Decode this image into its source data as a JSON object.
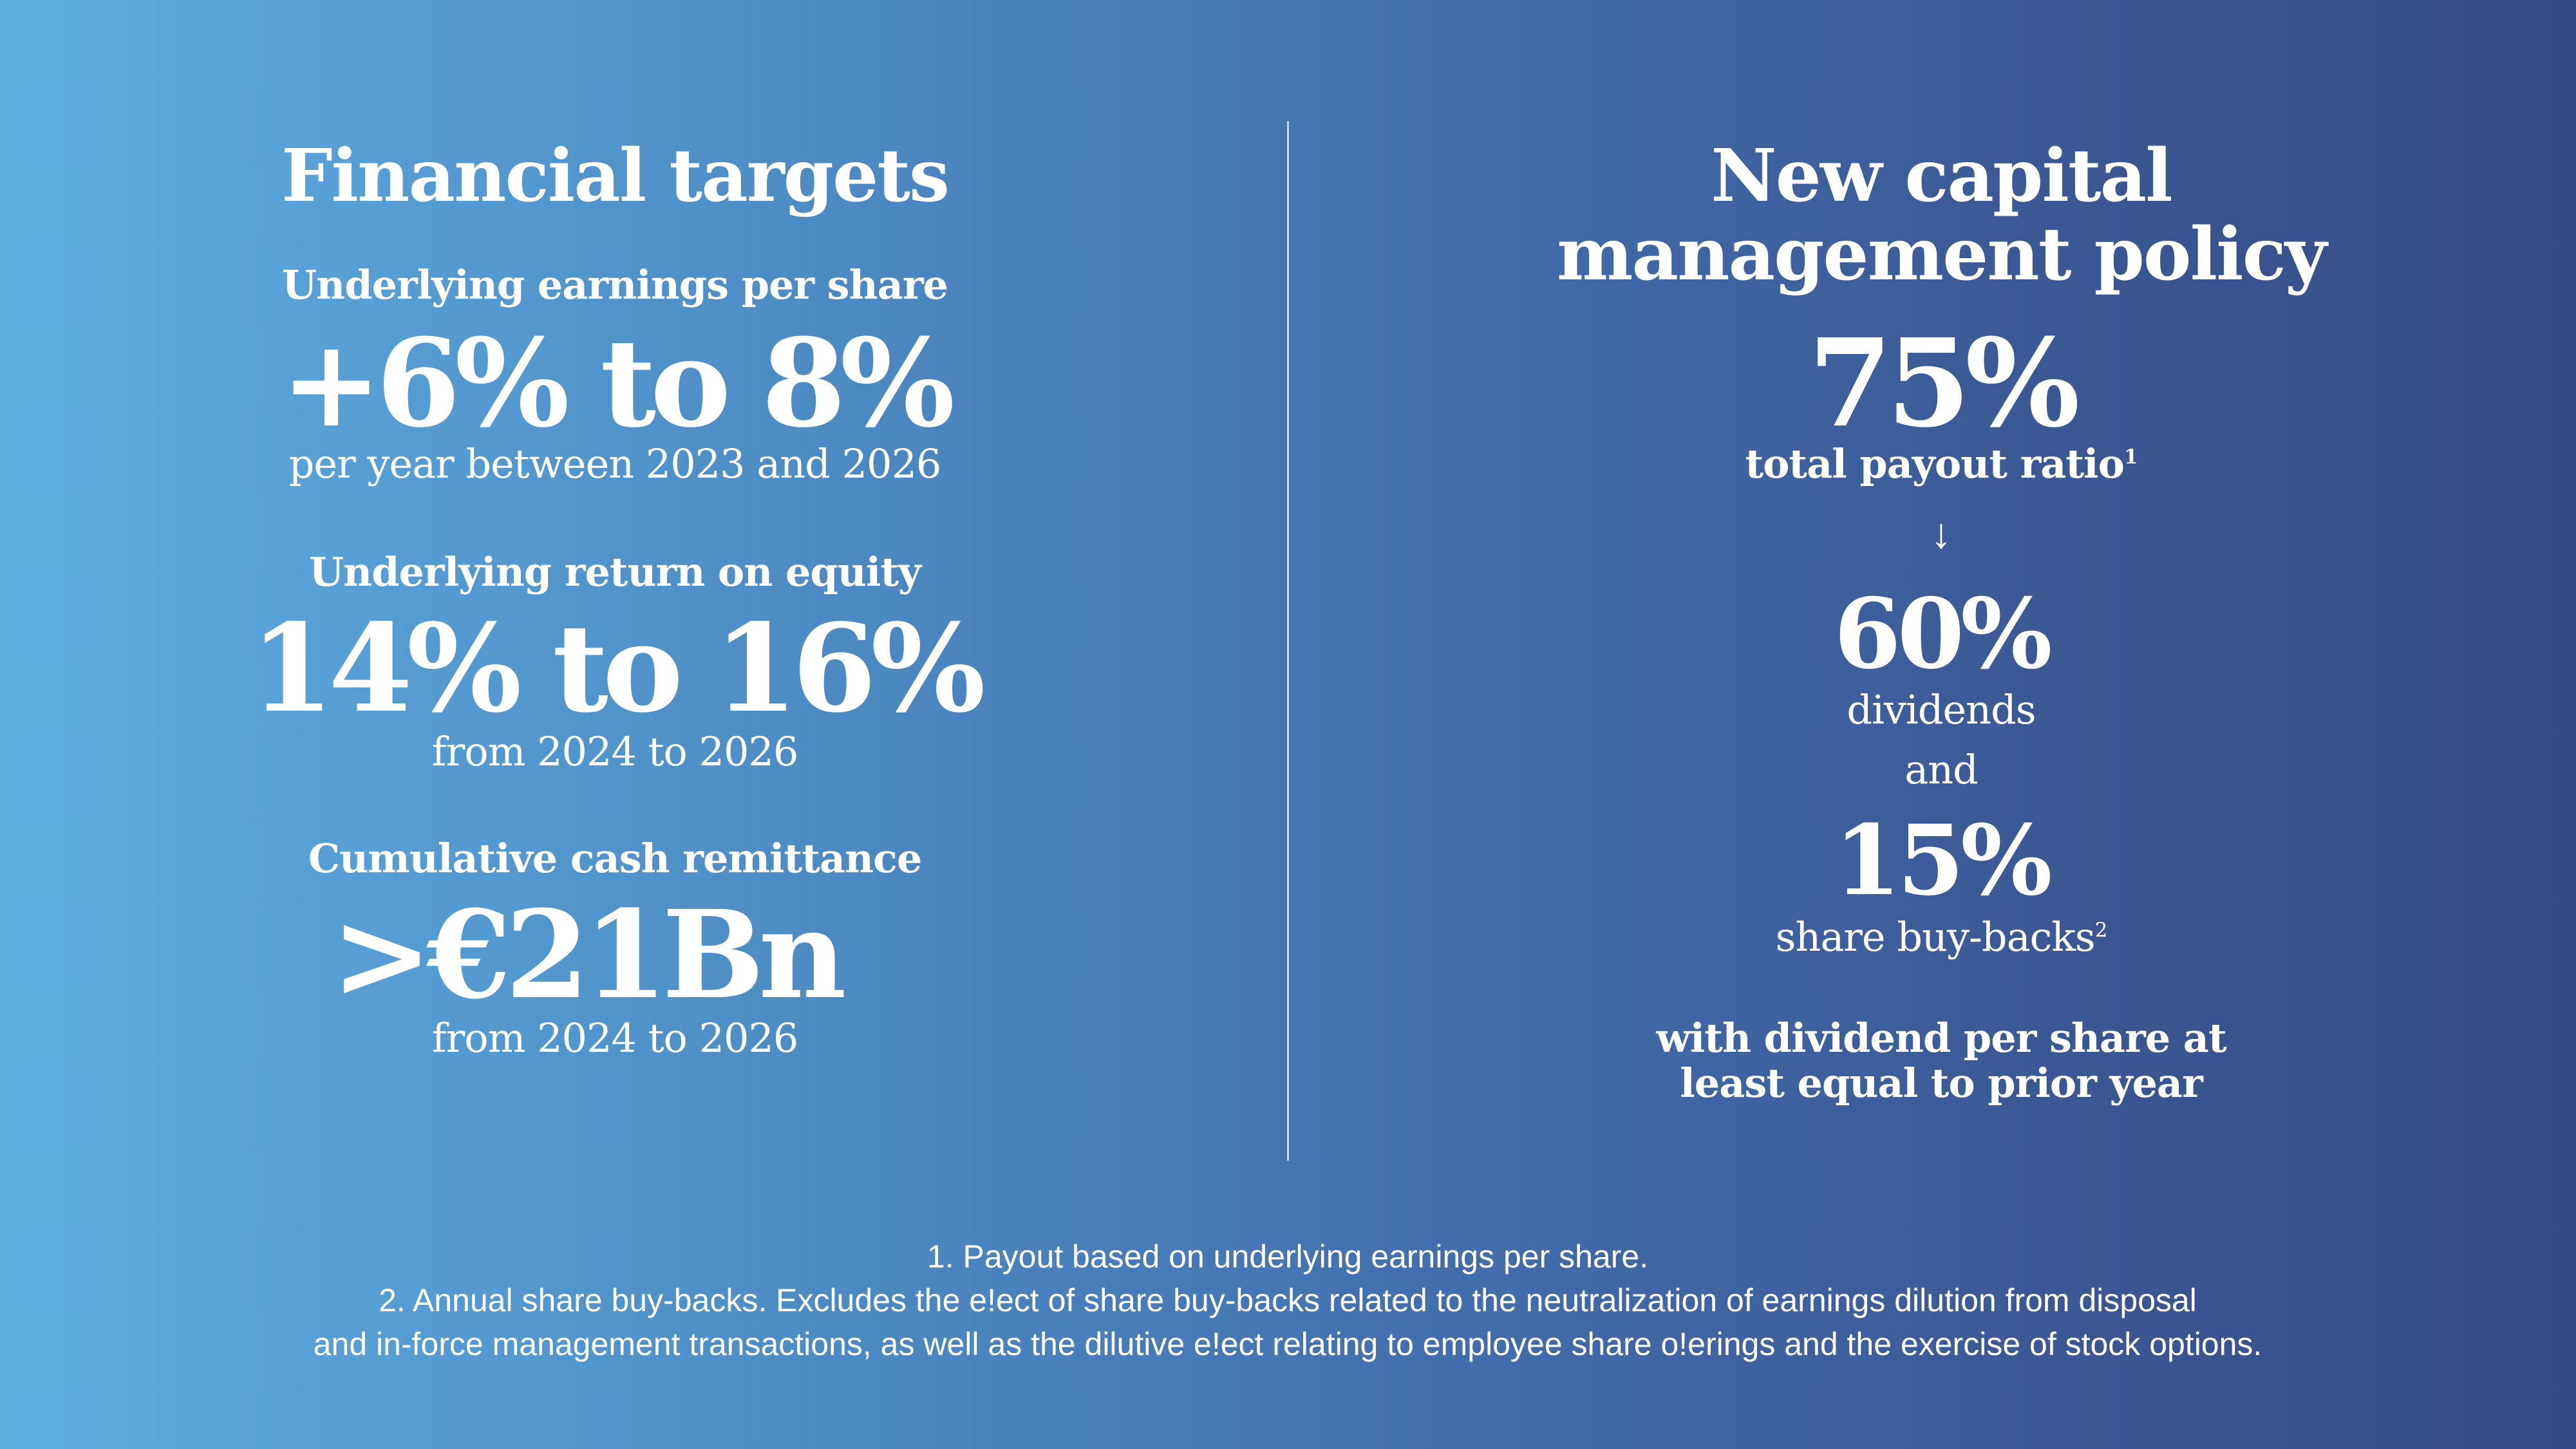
{
  "left": {
    "title": "Financial targets",
    "sections": [
      {
        "label": "Underlying earnings per share",
        "value": "+6% to 8%",
        "note": "per year between 2023 and 2026"
      },
      {
        "label": "Underlying return on equity",
        "value": "14% to 16%",
        "note": "from 2024 to 2026"
      },
      {
        "label": "Cumulative cash remittance",
        "value": ">€21Bn",
        "note": "from 2024 to 2026"
      }
    ]
  },
  "right": {
    "title_line1": "New capital",
    "title_line2": "management policy",
    "payout_value": "75%",
    "payout_label": "total payout ratio",
    "payout_sup": "1",
    "arrow": "↓",
    "dividends_value": "60%",
    "dividends_label": "dividends",
    "and_label": "and",
    "buyback_value": "15%",
    "buyback_label": "share buy-backs",
    "buyback_sup": "2",
    "closing_line1": "with dividend per share at",
    "closing_line2": "least equal to prior year"
  },
  "footnotes": [
    "1. Payout based on underlying earnings per share.",
    "2. Annual share buy-backs. Excludes the e!ect of share buy-backs related to the neutralization of earnings dilution from disposal",
    "and in-force management transactions, as well as the dilutive e!ect relating to employee share o!erings and the exercise of stock options."
  ]
}
